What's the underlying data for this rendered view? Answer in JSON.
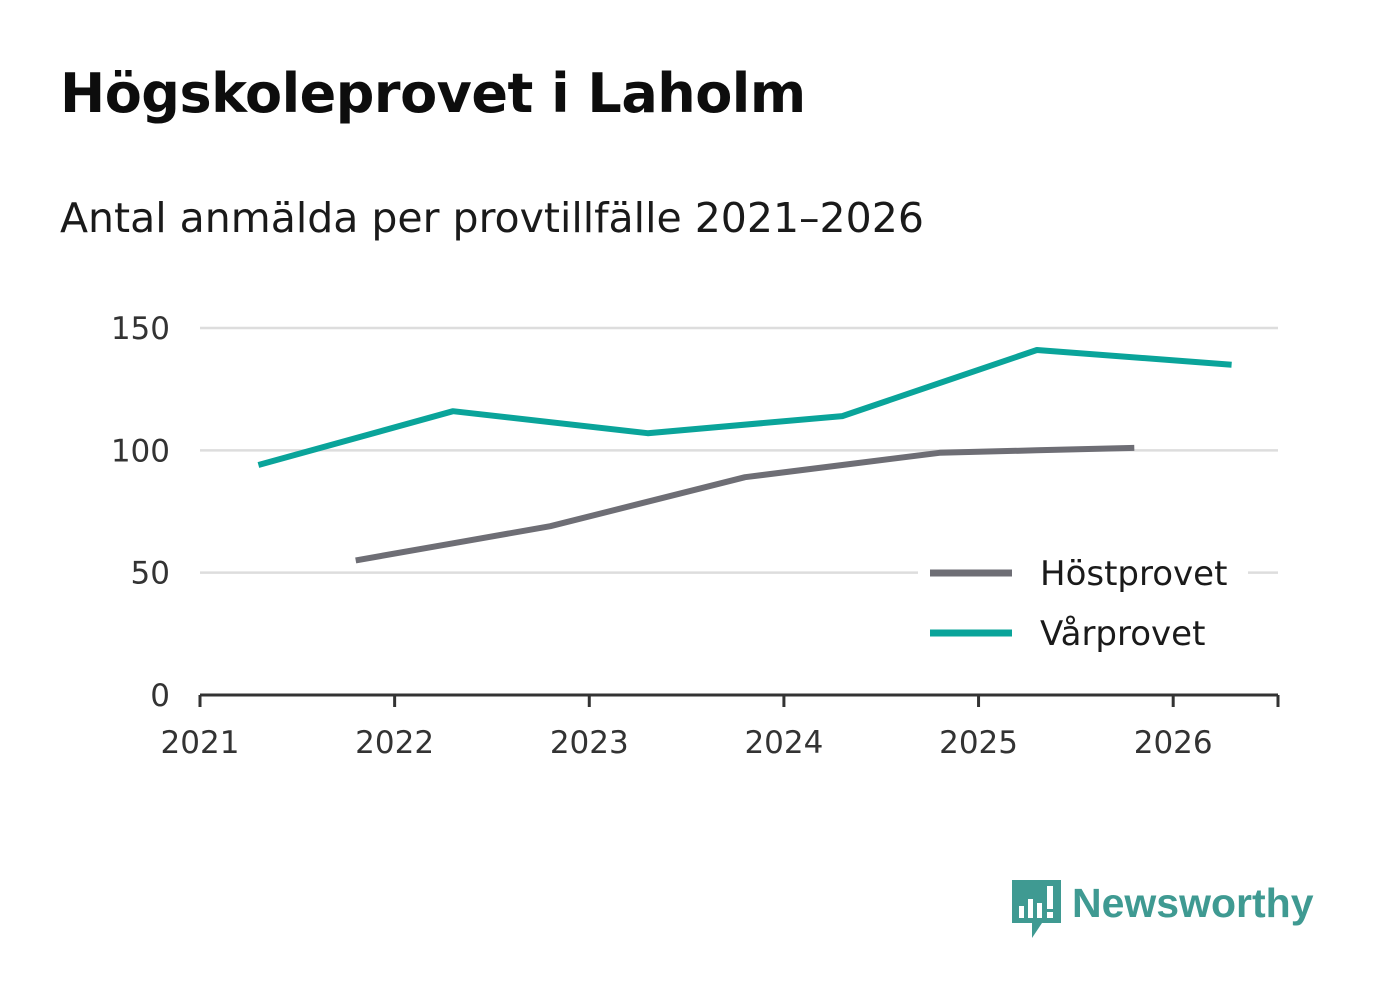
{
  "title": "Högskoleprovet i Laholm",
  "subtitle": "Antal anmälda per provtillfälle 2021–2026",
  "brand": {
    "name": "Newsworthy",
    "color": "#3f9a92",
    "icon": "newsworthy-logo-icon"
  },
  "colors": {
    "hostprovet": "#6e6e75",
    "varprovet": "#0aa49a",
    "grid": "#dddddd",
    "axis": "#333333"
  },
  "chart_data": {
    "type": "line",
    "title": "Högskoleprovet i Laholm",
    "subtitle": "Antal anmälda per provtillfälle 2021–2026",
    "xlabel": "",
    "ylabel": "",
    "xlim": [
      2021,
      2026.55
    ],
    "ylim": [
      0,
      150
    ],
    "x_ticks": [
      "2021",
      "2022",
      "2023",
      "2024",
      "2025",
      "2026"
    ],
    "y_ticks": [
      "0",
      "50",
      "100",
      "150"
    ],
    "grid": true,
    "legend_position": "bottom-right",
    "series": [
      {
        "name": "Höstprovet",
        "color": "#6e6e75",
        "x": [
          2021.8,
          2022.3,
          2022.8,
          2023.3,
          2023.8,
          2024.3,
          2024.8,
          2025.3,
          2025.8
        ],
        "values": [
          55,
          62,
          69,
          79,
          89,
          94,
          99,
          100,
          101
        ]
      },
      {
        "name": "Vårprovet",
        "color": "#0aa49a",
        "x": [
          2021.3,
          2022.3,
          2023.3,
          2024.3,
          2025.3,
          2026.3
        ],
        "values": [
          94,
          116,
          107,
          114,
          141,
          135
        ]
      }
    ]
  }
}
